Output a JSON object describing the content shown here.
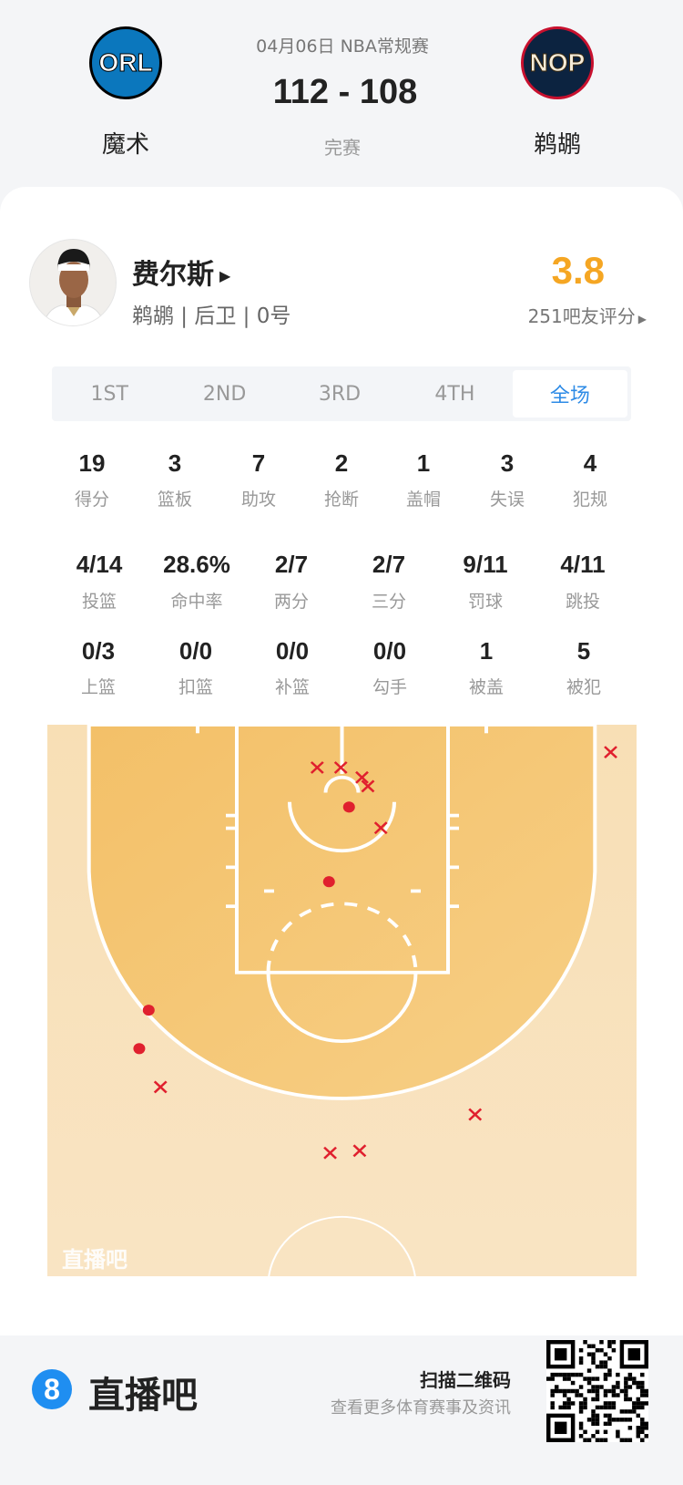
{
  "header": {
    "date_league": "04月06日 NBA常规赛",
    "score": "112 - 108",
    "status": "完赛",
    "home": {
      "abbr": "ORL",
      "name": "魔术"
    },
    "away": {
      "abbr": "NOP",
      "name": "鹈鹕"
    }
  },
  "player": {
    "name": "费尔斯",
    "team_position_number": "鹈鹕 | 后卫 | 0号",
    "rating": "3.8",
    "raters": "251吧友评分",
    "rating_color": "#f5a623"
  },
  "tabs": [
    {
      "label": "1ST"
    },
    {
      "label": "2ND"
    },
    {
      "label": "3RD"
    },
    {
      "label": "4TH"
    },
    {
      "label": "全场",
      "active": true
    }
  ],
  "stats_row1": [
    {
      "v": "19",
      "l": "得分"
    },
    {
      "v": "3",
      "l": "篮板"
    },
    {
      "v": "7",
      "l": "助攻"
    },
    {
      "v": "2",
      "l": "抢断"
    },
    {
      "v": "1",
      "l": "盖帽"
    },
    {
      "v": "3",
      "l": "失误"
    },
    {
      "v": "4",
      "l": "犯规"
    }
  ],
  "stats_row2": [
    {
      "v": "4/14",
      "l": "投篮"
    },
    {
      "v": "28.6%",
      "l": "命中率"
    },
    {
      "v": "2/7",
      "l": "两分"
    },
    {
      "v": "2/7",
      "l": "三分"
    },
    {
      "v": "9/11",
      "l": "罚球"
    },
    {
      "v": "4/11",
      "l": "跳投"
    }
  ],
  "stats_row3": [
    {
      "v": "0/3",
      "l": "上篮"
    },
    {
      "v": "0/0",
      "l": "扣篮"
    },
    {
      "v": "0/0",
      "l": "补篮"
    },
    {
      "v": "0/0",
      "l": "勾手"
    },
    {
      "v": "1",
      "l": "被盖"
    },
    {
      "v": "5",
      "l": "被犯"
    }
  ],
  "shot_chart": {
    "watermark": "直播吧",
    "units": "feet (x from basket center, y from baseline)",
    "made_color": "#e0202e",
    "missed_color": "#e0202e",
    "shots": [
      {
        "x": -2.1,
        "y": 3.9,
        "made": false
      },
      {
        "x": -0.1,
        "y": 3.9,
        "made": false
      },
      {
        "x": 1.7,
        "y": 4.8,
        "made": false
      },
      {
        "x": 2.2,
        "y": 5.6,
        "made": false
      },
      {
        "x": 3.3,
        "y": 9.4,
        "made": false
      },
      {
        "x": 22.8,
        "y": 2.5,
        "made": false
      },
      {
        "x": -15.4,
        "y": 33.0,
        "made": false
      },
      {
        "x": 11.3,
        "y": 35.5,
        "made": false
      },
      {
        "x": -1.0,
        "y": 39.0,
        "made": false
      },
      {
        "x": 1.5,
        "y": 38.8,
        "made": false
      },
      {
        "x": 0.6,
        "y": 7.5,
        "made": true
      },
      {
        "x": -1.1,
        "y": 14.3,
        "made": true
      },
      {
        "x": -16.4,
        "y": 26.0,
        "made": true
      },
      {
        "x": -17.2,
        "y": 29.5,
        "made": true
      }
    ]
  },
  "footer": {
    "logo_glyph": "8",
    "brand": "直播吧",
    "scan_title": "扫描二维码",
    "scan_sub": "查看更多体育赛事及资讯",
    "accent": "#1f8ef1"
  }
}
